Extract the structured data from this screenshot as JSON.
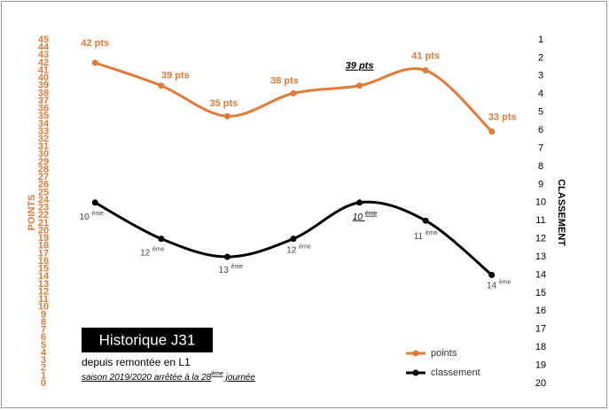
{
  "chart_data": {
    "type": "line",
    "categories": [
      null,
      null,
      null,
      null,
      null,
      null,
      null
    ],
    "series": [
      {
        "name": "points",
        "color": "#e07b39",
        "values": [
          42,
          39,
          35,
          38,
          39,
          41,
          33
        ],
        "value_labels": [
          "42 pts",
          "39 pts",
          "35 pts",
          "38 pts",
          "39 pts",
          "41 pts",
          "33 pts"
        ]
      },
      {
        "name": "classement",
        "color": "#000000",
        "axis": "y2",
        "values": [
          10,
          12,
          13,
          12,
          10,
          11,
          14
        ],
        "value_labels": [
          "10ème",
          "12ème",
          "13ème",
          "12ème",
          "10ème",
          "11ème",
          "14ème"
        ]
      }
    ],
    "highlight": 4,
    "ylabel": "POINTS",
    "y2label": "CLASSEMENT",
    "ylim": [
      0,
      45
    ],
    "yticks": [
      0,
      1,
      2,
      3,
      4,
      5,
      6,
      7,
      8,
      9,
      10,
      11,
      12,
      13,
      14,
      15,
      16,
      17,
      18,
      19,
      20,
      21,
      22,
      23,
      24,
      25,
      26,
      27,
      28,
      29,
      30,
      31,
      32,
      33,
      34,
      35,
      36,
      37,
      38,
      39,
      40,
      41,
      42,
      43,
      44,
      45
    ],
    "y2lim": [
      20,
      1
    ],
    "y2ticks": [
      1,
      2,
      3,
      4,
      5,
      6,
      7,
      8,
      9,
      10,
      11,
      12,
      13,
      14,
      15,
      16,
      17,
      18,
      19,
      20
    ],
    "annotation_title": "Historique J31",
    "annotation_line1": "depuis remontée en L1",
    "annotation_line2": "saison 2019/2020 arrêtée à la 28ème journée",
    "legend": "bottom-right"
  }
}
